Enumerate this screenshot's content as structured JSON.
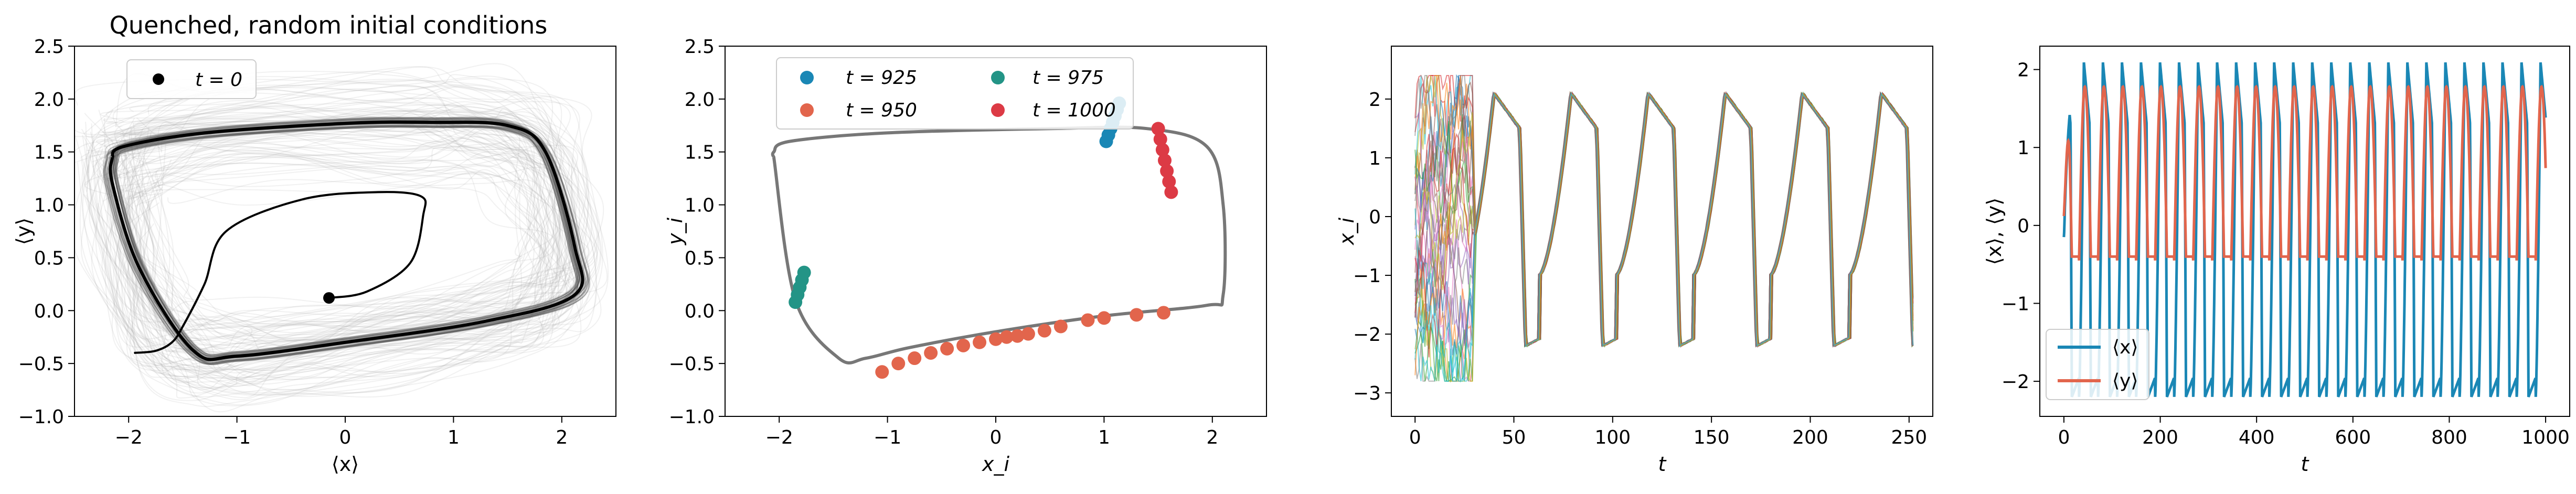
{
  "chart_data": [
    {
      "type": "line",
      "title": "Quenched, random initial conditions",
      "xlabel": "⟨x⟩",
      "ylabel": "⟨y⟩",
      "xlim": [
        -2.5,
        2.5
      ],
      "ylim": [
        -1.0,
        2.5
      ],
      "xticks": [
        -2,
        -1,
        0,
        1,
        2
      ],
      "yticks": [
        -1.0,
        -0.5,
        0.0,
        0.5,
        1.0,
        1.5,
        2.0,
        2.5
      ],
      "xtick_labels": [
        "−2",
        "−1",
        "0",
        "1",
        "2"
      ],
      "ytick_labels": [
        "−1.0",
        "−0.5",
        "0.0",
        "0.5",
        "1.0",
        "1.5",
        "2.0",
        "2.5"
      ],
      "legend": {
        "placement": "top-left",
        "entries": [
          {
            "label": "t = 0",
            "color": "#000000",
            "marker": "circle"
          }
        ]
      },
      "series": [
        {
          "style": "thin-gray-trajectories",
          "color": "#999999",
          "x": [
            -2.15,
            -2.0,
            -1.0,
            0.5,
            1.2,
            1.8,
            2.0,
            2.02,
            1.6,
            0.6,
            -0.6,
            -1.3,
            -1.8,
            -2.1,
            -2.15
          ],
          "y": [
            1.45,
            1.6,
            1.73,
            1.78,
            1.75,
            1.55,
            1.0,
            0.28,
            -0.05,
            -0.25,
            -0.4,
            -0.45,
            -0.2,
            0.7,
            1.45
          ]
        },
        {
          "style": "limit-cycle",
          "color": "#000000",
          "x": [
            -2.15,
            -2.05,
            -1.3,
            0.0,
            0.8,
            1.5,
            1.85,
            2.12,
            2.12,
            1.3,
            0.0,
            -1.0,
            -1.4,
            -1.9,
            -2.15,
            -2.15
          ],
          "y": [
            1.45,
            1.55,
            1.68,
            1.77,
            1.78,
            1.75,
            1.5,
            0.6,
            0.15,
            -0.1,
            -0.3,
            -0.43,
            -0.38,
            0.4,
            1.2,
            1.45
          ]
        },
        {
          "style": "transient-from-origin",
          "color": "#000000",
          "x": [
            -0.15,
            0.2,
            0.6,
            0.72,
            0.7,
            0.3,
            -0.4,
            -1.1,
            -1.3,
            -1.5,
            -1.6,
            -1.75,
            -1.95
          ],
          "y": [
            0.12,
            0.18,
            0.45,
            0.9,
            1.08,
            1.12,
            1.05,
            0.75,
            0.25,
            -0.15,
            -0.3,
            -0.38,
            -0.4
          ]
        }
      ],
      "points": [
        {
          "label": "t = 0",
          "x": -0.15,
          "y": 0.12,
          "color": "#000000"
        }
      ]
    },
    {
      "type": "scatter",
      "title": "",
      "xlabel": "x_i",
      "ylabel": "y_i",
      "xlim": [
        -2.5,
        2.5
      ],
      "ylim": [
        -1.0,
        2.5
      ],
      "xticks": [
        -2,
        -1,
        0,
        1,
        2
      ],
      "yticks": [
        -1.0,
        -0.5,
        0.0,
        0.5,
        1.0,
        1.5,
        2.0,
        2.5
      ],
      "xtick_labels": [
        "−2",
        "−1",
        "0",
        "1",
        "2"
      ],
      "ytick_labels": [
        "−1.0",
        "−0.5",
        "0.0",
        "0.5",
        "1.0",
        "1.5",
        "2.0",
        "2.5"
      ],
      "legend": {
        "placement": "top-left",
        "columns": 2,
        "entries": [
          {
            "label": "t = 925",
            "color": "#1a87b5"
          },
          {
            "label": "t = 975",
            "color": "#239486"
          },
          {
            "label": "t = 950",
            "color": "#e2654c"
          },
          {
            "label": "t = 1000",
            "color": "#dc3a45"
          }
        ]
      },
      "cycle": {
        "color": "#777777",
        "x": [
          -2.05,
          -2.05,
          -1.9,
          -1.0,
          0.5,
          1.4,
          1.95,
          2.1,
          2.1,
          1.95,
          1.0,
          0.0,
          -0.8,
          -1.2,
          -1.45,
          -1.85,
          -2.05
        ],
        "y": [
          1.45,
          1.5,
          1.6,
          1.68,
          1.72,
          1.72,
          1.55,
          1.0,
          0.15,
          0.05,
          -0.05,
          -0.2,
          -0.35,
          -0.45,
          -0.45,
          0.1,
          1.45
        ]
      },
      "series": [
        {
          "name": "t = 925",
          "color": "#1a87b5",
          "x": [
            1.02,
            1.04,
            1.06,
            1.08,
            1.1,
            1.12,
            1.14
          ],
          "y": [
            1.6,
            1.66,
            1.72,
            1.78,
            1.84,
            1.9,
            1.96
          ]
        },
        {
          "name": "t = 950",
          "color": "#e2654c",
          "x": [
            -1.05,
            -0.9,
            -0.75,
            -0.6,
            -0.45,
            -0.3,
            -0.15,
            0.0,
            0.1,
            0.2,
            0.3,
            0.45,
            0.6,
            0.85,
            1.0,
            1.3,
            1.55
          ],
          "y": [
            -0.58,
            -0.5,
            -0.45,
            -0.4,
            -0.36,
            -0.33,
            -0.3,
            -0.27,
            -0.25,
            -0.24,
            -0.22,
            -0.19,
            -0.15,
            -0.09,
            -0.07,
            -0.04,
            -0.02
          ]
        },
        {
          "name": "t = 975",
          "color": "#239486",
          "x": [
            -1.85,
            -1.83,
            -1.81,
            -1.79,
            -1.77
          ],
          "y": [
            0.08,
            0.15,
            0.22,
            0.29,
            0.36
          ]
        },
        {
          "name": "t = 1000",
          "color": "#dc3a45",
          "x": [
            1.5,
            1.52,
            1.54,
            1.56,
            1.58,
            1.6,
            1.62
          ],
          "y": [
            1.72,
            1.62,
            1.52,
            1.42,
            1.32,
            1.22,
            1.12
          ]
        }
      ]
    },
    {
      "type": "line",
      "title": "",
      "xlabel": "t",
      "ylabel": "x_i",
      "xlim": [
        -12,
        262
      ],
      "ylim": [
        -3.4,
        2.9
      ],
      "xticks": [
        0,
        50,
        100,
        150,
        200,
        250
      ],
      "yticks": [
        -3,
        -2,
        -1,
        0,
        1,
        2
      ],
      "xtick_labels": [
        "0",
        "50",
        "100",
        "150",
        "200",
        "250"
      ],
      "ytick_labels": [
        "−3",
        "−2",
        "−1",
        "0",
        "1",
        "2"
      ],
      "peak_times": [
        40,
        79,
        118,
        157,
        196,
        236
      ],
      "peak_value": 2.1,
      "trough_value": -2.2,
      "series_colors": [
        "#1f77b4",
        "#ff7f0e",
        "#2ca02c",
        "#d62728",
        "#9467bd",
        "#8c564b",
        "#e377c2",
        "#7f7f7f",
        "#bcbd22",
        "#17becf"
      ]
    },
    {
      "type": "line",
      "title": "",
      "xlabel": "t",
      "ylabel": "⟨x⟩, ⟨y⟩",
      "xlim": [
        -50,
        1050
      ],
      "ylim": [
        -2.45,
        2.3
      ],
      "xticks": [
        0,
        200,
        400,
        600,
        800,
        1000
      ],
      "yticks": [
        -2,
        -1,
        0,
        1,
        2
      ],
      "xtick_labels": [
        "0",
        "200",
        "400",
        "600",
        "800",
        "1000"
      ],
      "ytick_labels": [
        "−2",
        "−1",
        "0",
        "1",
        "2"
      ],
      "legend": {
        "placement": "bottom-left",
        "entries": [
          {
            "label": "⟨x⟩",
            "color": "#1a87b5"
          },
          {
            "label": "⟨y⟩",
            "color": "#e2654c"
          }
        ]
      },
      "series": [
        {
          "name": "⟨x⟩",
          "color": "#1a87b5",
          "period": 39.5,
          "max": 2.1,
          "min": -2.2,
          "start": -0.15
        },
        {
          "name": "⟨y⟩",
          "color": "#e2654c",
          "period": 39.5,
          "max": 1.78,
          "min": -0.45,
          "start": 0.12
        }
      ]
    }
  ]
}
